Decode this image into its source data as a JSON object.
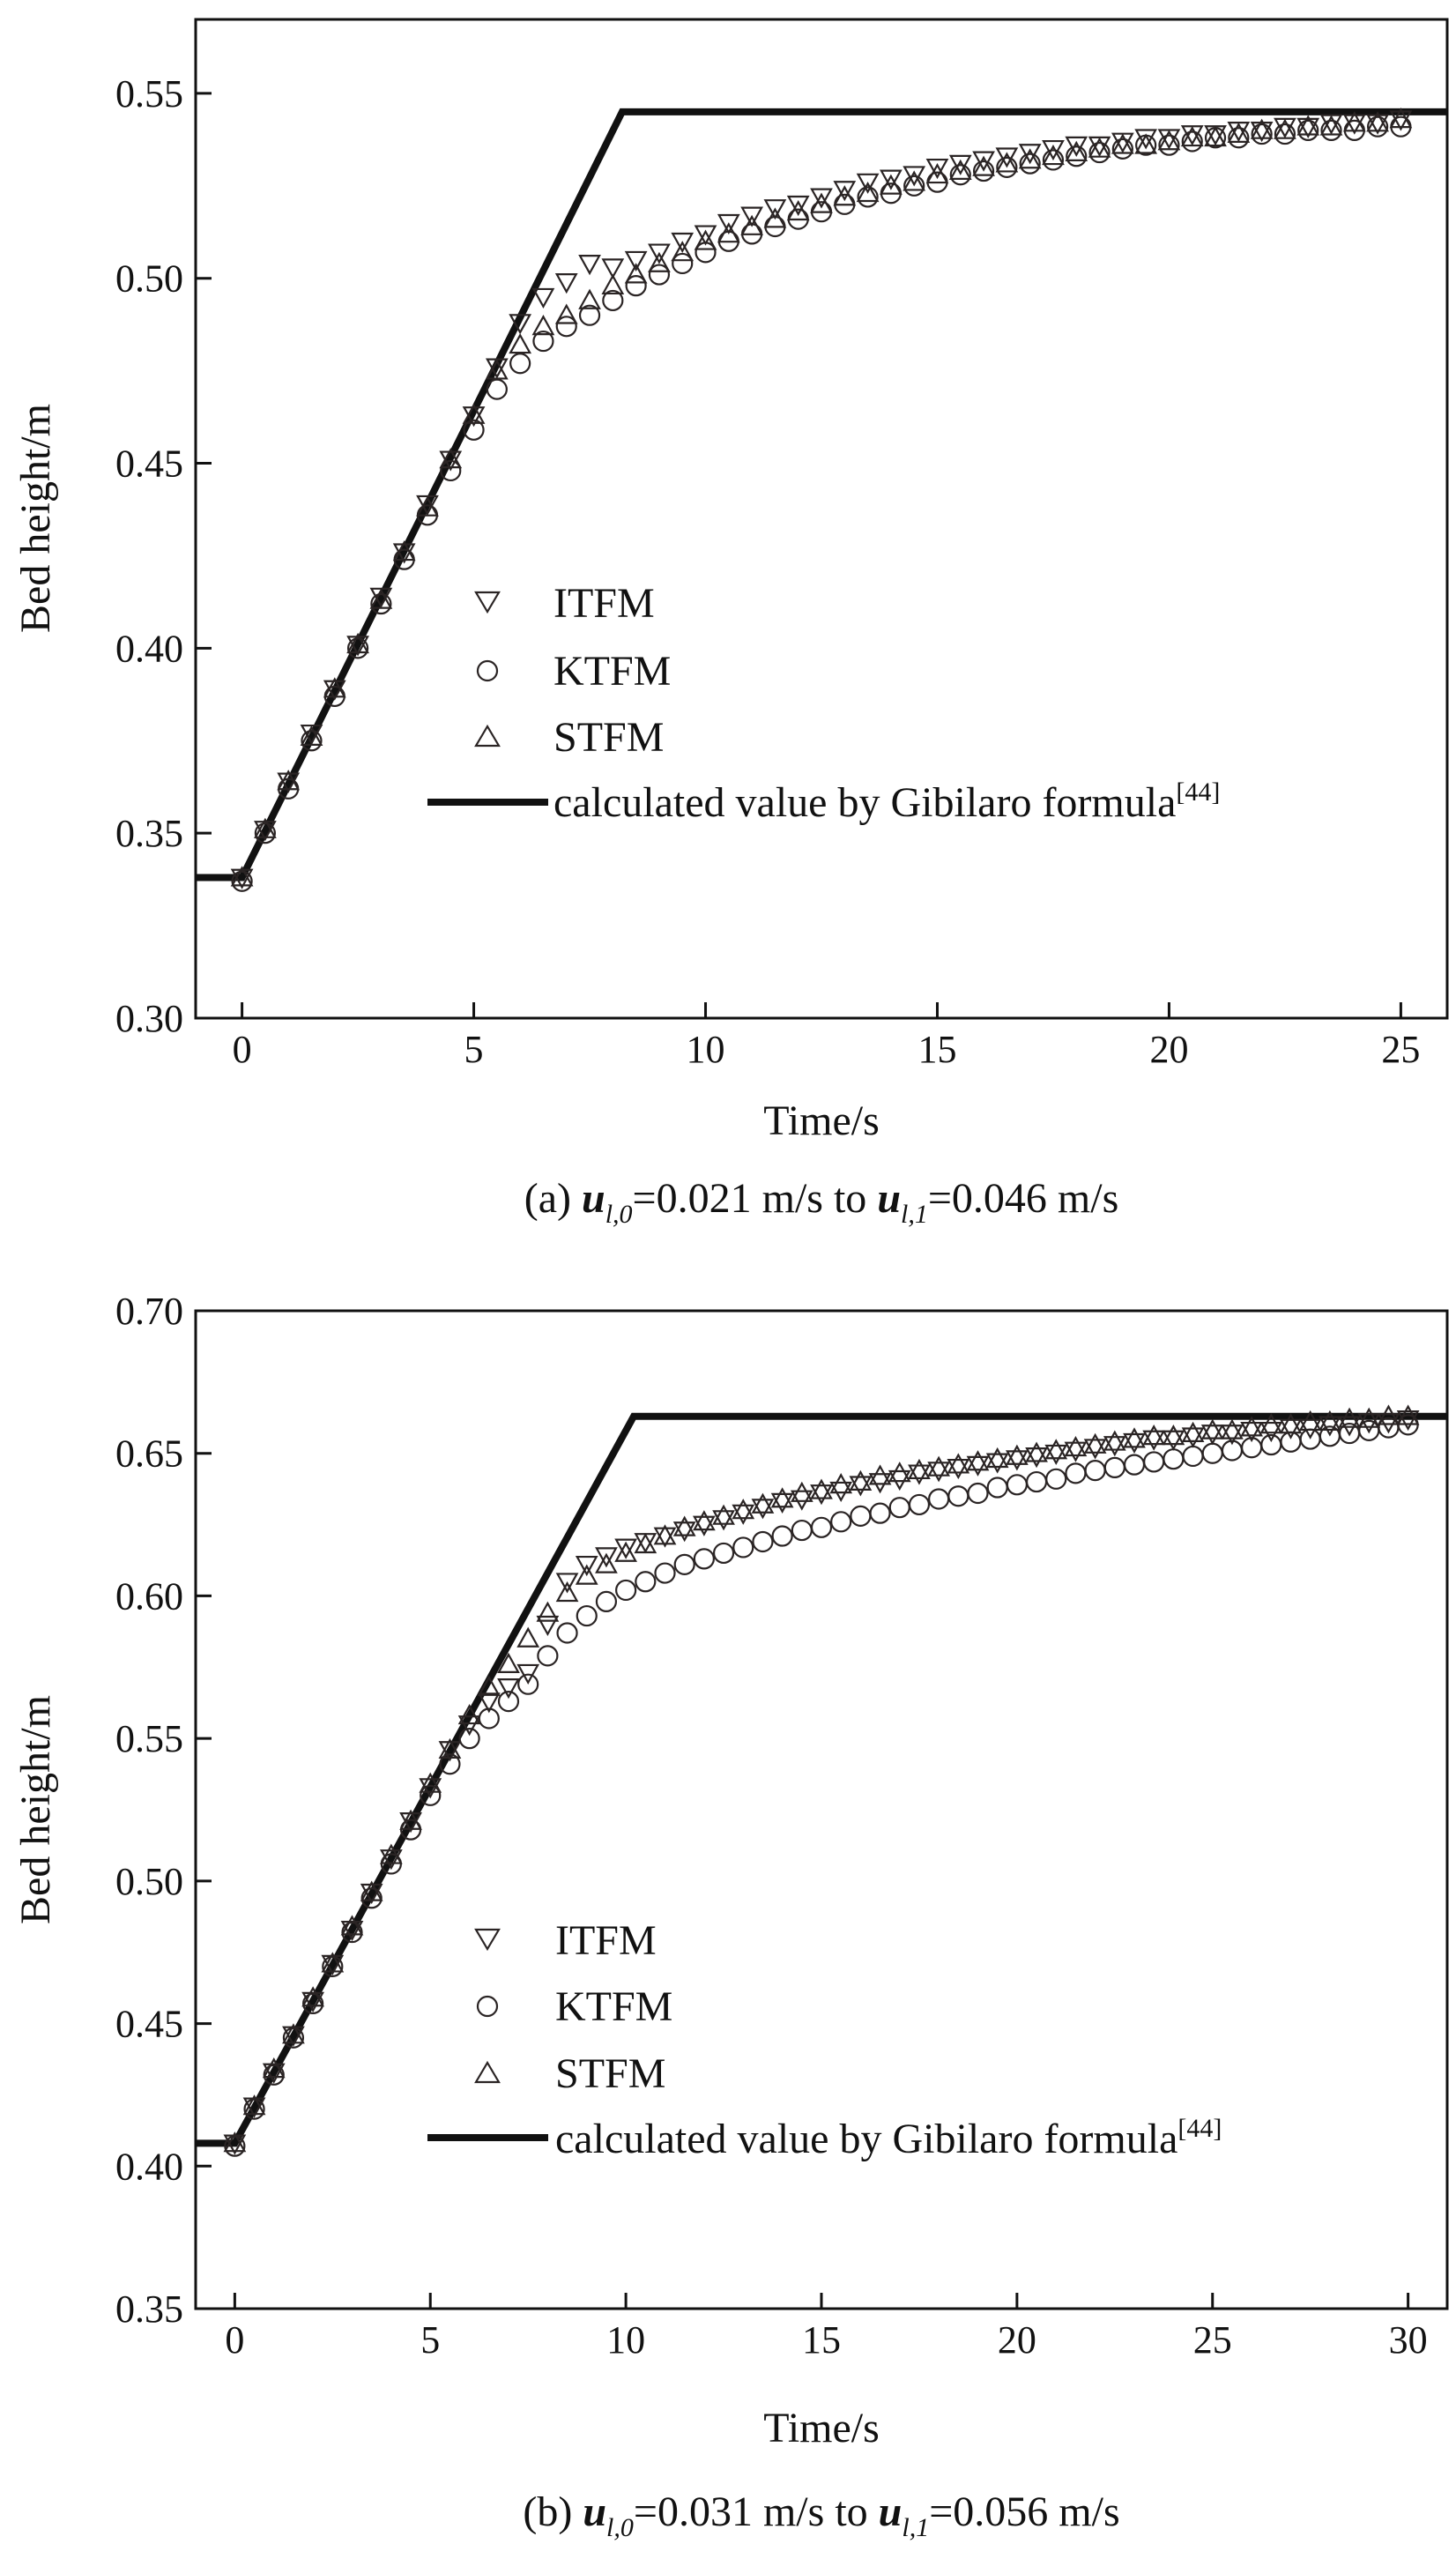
{
  "chart_data": [
    {
      "type": "scatter",
      "id": "a",
      "caption": {
        "prefix": "(a) ",
        "from_symbol": "u",
        "from_sub": "l,0",
        "from_value": "=0.021 m/s to ",
        "to_symbol": "u",
        "to_sub": "l,1",
        "to_value": "=0.046 m/s"
      },
      "xlabel": "Time/s",
      "ylabel": "Bed height/m",
      "xlim": [
        -1.0,
        26.0
      ],
      "ylim": [
        0.3,
        0.57
      ],
      "xticks": [
        0,
        5,
        10,
        15,
        20,
        25
      ],
      "xtick_labels": [
        "0",
        "5",
        "10",
        "15",
        "20",
        "25"
      ],
      "yticks": [
        0.3,
        0.35,
        0.4,
        0.45,
        0.5,
        0.55
      ],
      "ytick_labels": [
        "0.30",
        "0.35",
        "0.40",
        "0.45",
        "0.50",
        "0.55"
      ],
      "legend_position": "center-left",
      "legend": {
        "series": [
          "ITFM",
          "KTFM",
          "STFM"
        ],
        "line_label": "calculated value by Gibilaro formula",
        "line_ref": "[44]"
      },
      "model_line": {
        "name": "calculated value by Gibilaro formula[44]",
        "x": [
          -1.0,
          0.0,
          8.2,
          26.0
        ],
        "y": [
          0.338,
          0.338,
          0.545,
          0.545
        ]
      },
      "series": [
        {
          "name": "ITFM",
          "marker": "triangle-down",
          "x": [
            0,
            0.5,
            1,
            1.5,
            2,
            2.5,
            3,
            3.5,
            4,
            4.5,
            5,
            5.5,
            6,
            6.5,
            7,
            7.5,
            8,
            8.5,
            9,
            9.5,
            10,
            10.5,
            11,
            11.5,
            12,
            12.5,
            13,
            13.5,
            14,
            14.5,
            15,
            15.5,
            16,
            16.5,
            17,
            17.5,
            18,
            18.5,
            19,
            19.5,
            20,
            20.5,
            21,
            21.5,
            22,
            22.5,
            23,
            23.5,
            24,
            24.5,
            25
          ],
          "y": [
            0.338,
            0.351,
            0.364,
            0.377,
            0.389,
            0.401,
            0.414,
            0.426,
            0.439,
            0.451,
            0.463,
            0.476,
            0.488,
            0.495,
            0.499,
            0.504,
            0.503,
            0.505,
            0.507,
            0.51,
            0.512,
            0.515,
            0.517,
            0.519,
            0.52,
            0.522,
            0.524,
            0.526,
            0.527,
            0.528,
            0.53,
            0.531,
            0.532,
            0.533,
            0.534,
            0.535,
            0.536,
            0.536,
            0.537,
            0.538,
            0.538,
            0.539,
            0.539,
            0.54,
            0.54,
            0.541,
            0.541,
            0.542,
            0.542,
            0.542,
            0.543
          ]
        },
        {
          "name": "KTFM",
          "marker": "circle",
          "x": [
            0,
            0.5,
            1,
            1.5,
            2,
            2.5,
            3,
            3.5,
            4,
            4.5,
            5,
            5.5,
            6,
            6.5,
            7,
            7.5,
            8,
            8.5,
            9,
            9.5,
            10,
            10.5,
            11,
            11.5,
            12,
            12.5,
            13,
            13.5,
            14,
            14.5,
            15,
            15.5,
            16,
            16.5,
            17,
            17.5,
            18,
            18.5,
            19,
            19.5,
            20,
            20.5,
            21,
            21.5,
            22,
            22.5,
            23,
            23.5,
            24,
            24.5,
            25
          ],
          "y": [
            0.337,
            0.35,
            0.362,
            0.375,
            0.387,
            0.4,
            0.412,
            0.424,
            0.436,
            0.448,
            0.459,
            0.47,
            0.477,
            0.483,
            0.487,
            0.49,
            0.494,
            0.498,
            0.501,
            0.504,
            0.507,
            0.51,
            0.512,
            0.514,
            0.516,
            0.518,
            0.52,
            0.522,
            0.523,
            0.525,
            0.526,
            0.528,
            0.529,
            0.53,
            0.531,
            0.532,
            0.533,
            0.534,
            0.535,
            0.536,
            0.536,
            0.537,
            0.538,
            0.538,
            0.539,
            0.539,
            0.54,
            0.54,
            0.54,
            0.541,
            0.541
          ]
        },
        {
          "name": "STFM",
          "marker": "triangle-up",
          "x": [
            0,
            0.5,
            1,
            1.5,
            2,
            2.5,
            3,
            3.5,
            4,
            4.5,
            5,
            5.5,
            6,
            6.5,
            7,
            7.5,
            8,
            8.5,
            9,
            9.5,
            10,
            10.5,
            11,
            11.5,
            12,
            12.5,
            13,
            13.5,
            14,
            14.5,
            15,
            15.5,
            16,
            16.5,
            17,
            17.5,
            18,
            18.5,
            19,
            19.5,
            20,
            20.5,
            21,
            21.5,
            22,
            22.5,
            23,
            23.5,
            24,
            24.5,
            25
          ],
          "y": [
            0.338,
            0.351,
            0.364,
            0.376,
            0.389,
            0.401,
            0.413,
            0.426,
            0.438,
            0.451,
            0.463,
            0.475,
            0.482,
            0.487,
            0.49,
            0.494,
            0.498,
            0.501,
            0.504,
            0.507,
            0.51,
            0.512,
            0.514,
            0.516,
            0.518,
            0.52,
            0.522,
            0.523,
            0.525,
            0.526,
            0.528,
            0.529,
            0.53,
            0.531,
            0.532,
            0.533,
            0.534,
            0.535,
            0.536,
            0.536,
            0.537,
            0.538,
            0.538,
            0.539,
            0.54,
            0.54,
            0.541,
            0.541,
            0.542,
            0.542,
            0.543
          ]
        }
      ]
    },
    {
      "type": "scatter",
      "id": "b",
      "caption": {
        "prefix": "(b) ",
        "from_symbol": "u",
        "from_sub": "l,0",
        "from_value": "=0.031 m/s to ",
        "to_symbol": "u",
        "to_sub": "l,1",
        "to_value": "=0.056 m/s"
      },
      "xlabel": "Time/s",
      "ylabel": "Bed height/m",
      "xlim": [
        -1.0,
        31.0
      ],
      "ylim": [
        0.35,
        0.7
      ],
      "xticks": [
        0,
        5,
        10,
        15,
        20,
        25,
        30
      ],
      "xtick_labels": [
        "0",
        "5",
        "10",
        "15",
        "20",
        "25",
        "30"
      ],
      "yticks": [
        0.35,
        0.4,
        0.45,
        0.5,
        0.55,
        0.6,
        0.65,
        0.7
      ],
      "ytick_labels": [
        "0.35",
        "0.40",
        "0.45",
        "0.50",
        "0.55",
        "0.60",
        "0.65",
        "0.70"
      ],
      "legend_position": "center-left",
      "legend": {
        "series": [
          "ITFM",
          "KTFM",
          "STFM"
        ],
        "line_label": "calculated value by Gibilaro formula",
        "line_ref": "[44]"
      },
      "model_line": {
        "name": "calculated value by Gibilaro formula[44]",
        "x": [
          -1.0,
          0.0,
          10.2,
          31.0
        ],
        "y": [
          0.408,
          0.408,
          0.663,
          0.663
        ]
      },
      "series": [
        {
          "name": "ITFM",
          "marker": "triangle-down",
          "x": [
            0,
            0.5,
            1,
            1.5,
            2,
            2.5,
            3,
            3.5,
            4,
            4.5,
            5,
            5.5,
            6,
            6.5,
            7,
            7.5,
            8,
            8.5,
            9,
            9.5,
            10,
            10.5,
            11,
            11.5,
            12,
            12.5,
            13,
            13.5,
            14,
            14.5,
            15,
            15.5,
            16,
            16.5,
            17,
            17.5,
            18,
            18.5,
            19,
            19.5,
            20,
            20.5,
            21,
            21.5,
            22,
            22.5,
            23,
            23.5,
            24,
            24.5,
            25,
            25.5,
            26,
            26.5,
            27,
            27.5,
            28,
            28.5,
            29,
            29.5,
            30
          ],
          "y": [
            0.408,
            0.421,
            0.433,
            0.446,
            0.458,
            0.471,
            0.483,
            0.496,
            0.508,
            0.521,
            0.533,
            0.546,
            0.555,
            0.563,
            0.568,
            0.573,
            0.59,
            0.605,
            0.611,
            0.614,
            0.617,
            0.619,
            0.621,
            0.623,
            0.625,
            0.627,
            0.629,
            0.631,
            0.633,
            0.634,
            0.636,
            0.637,
            0.639,
            0.64,
            0.641,
            0.643,
            0.644,
            0.645,
            0.646,
            0.647,
            0.648,
            0.649,
            0.65,
            0.651,
            0.652,
            0.653,
            0.654,
            0.655,
            0.655,
            0.656,
            0.657,
            0.657,
            0.658,
            0.658,
            0.659,
            0.659,
            0.66,
            0.66,
            0.661,
            0.661,
            0.662
          ]
        },
        {
          "name": "KTFM",
          "marker": "circle",
          "x": [
            0,
            0.5,
            1,
            1.5,
            2,
            2.5,
            3,
            3.5,
            4,
            4.5,
            5,
            5.5,
            6,
            6.5,
            7,
            7.5,
            8,
            8.5,
            9,
            9.5,
            10,
            10.5,
            11,
            11.5,
            12,
            12.5,
            13,
            13.5,
            14,
            14.5,
            15,
            15.5,
            16,
            16.5,
            17,
            17.5,
            18,
            18.5,
            19,
            19.5,
            20,
            20.5,
            21,
            21.5,
            22,
            22.5,
            23,
            23.5,
            24,
            24.5,
            25,
            25.5,
            26,
            26.5,
            27,
            27.5,
            28,
            28.5,
            29,
            29.5,
            30
          ],
          "y": [
            0.407,
            0.42,
            0.432,
            0.445,
            0.457,
            0.47,
            0.482,
            0.494,
            0.506,
            0.518,
            0.53,
            0.541,
            0.55,
            0.557,
            0.563,
            0.569,
            0.579,
            0.587,
            0.593,
            0.598,
            0.602,
            0.605,
            0.608,
            0.611,
            0.613,
            0.615,
            0.617,
            0.619,
            0.621,
            0.623,
            0.624,
            0.626,
            0.628,
            0.629,
            0.631,
            0.632,
            0.634,
            0.635,
            0.636,
            0.638,
            0.639,
            0.64,
            0.641,
            0.643,
            0.644,
            0.645,
            0.646,
            0.647,
            0.648,
            0.649,
            0.65,
            0.651,
            0.652,
            0.653,
            0.654,
            0.655,
            0.656,
            0.657,
            0.658,
            0.659,
            0.66
          ]
        },
        {
          "name": "STFM",
          "marker": "triangle-up",
          "x": [
            0,
            0.5,
            1,
            1.5,
            2,
            2.5,
            3,
            3.5,
            4,
            4.5,
            5,
            5.5,
            6,
            6.5,
            7,
            7.5,
            8,
            8.5,
            9,
            9.5,
            10,
            10.5,
            11,
            11.5,
            12,
            12.5,
            13,
            13.5,
            14,
            14.5,
            15,
            15.5,
            16,
            16.5,
            17,
            17.5,
            18,
            18.5,
            19,
            19.5,
            20,
            20.5,
            21,
            21.5,
            22,
            22.5,
            23,
            23.5,
            24,
            24.5,
            25,
            25.5,
            26,
            26.5,
            27,
            27.5,
            28,
            28.5,
            29,
            29.5,
            30
          ],
          "y": [
            0.408,
            0.421,
            0.434,
            0.446,
            0.459,
            0.471,
            0.484,
            0.496,
            0.509,
            0.521,
            0.534,
            0.546,
            0.558,
            0.568,
            0.576,
            0.585,
            0.594,
            0.601,
            0.607,
            0.611,
            0.615,
            0.618,
            0.621,
            0.624,
            0.626,
            0.628,
            0.63,
            0.632,
            0.634,
            0.636,
            0.637,
            0.639,
            0.64,
            0.642,
            0.643,
            0.644,
            0.645,
            0.646,
            0.647,
            0.648,
            0.649,
            0.65,
            0.651,
            0.652,
            0.653,
            0.654,
            0.655,
            0.656,
            0.656,
            0.657,
            0.658,
            0.658,
            0.659,
            0.66,
            0.66,
            0.661,
            0.661,
            0.662,
            0.662,
            0.663,
            0.663
          ]
        }
      ]
    }
  ]
}
